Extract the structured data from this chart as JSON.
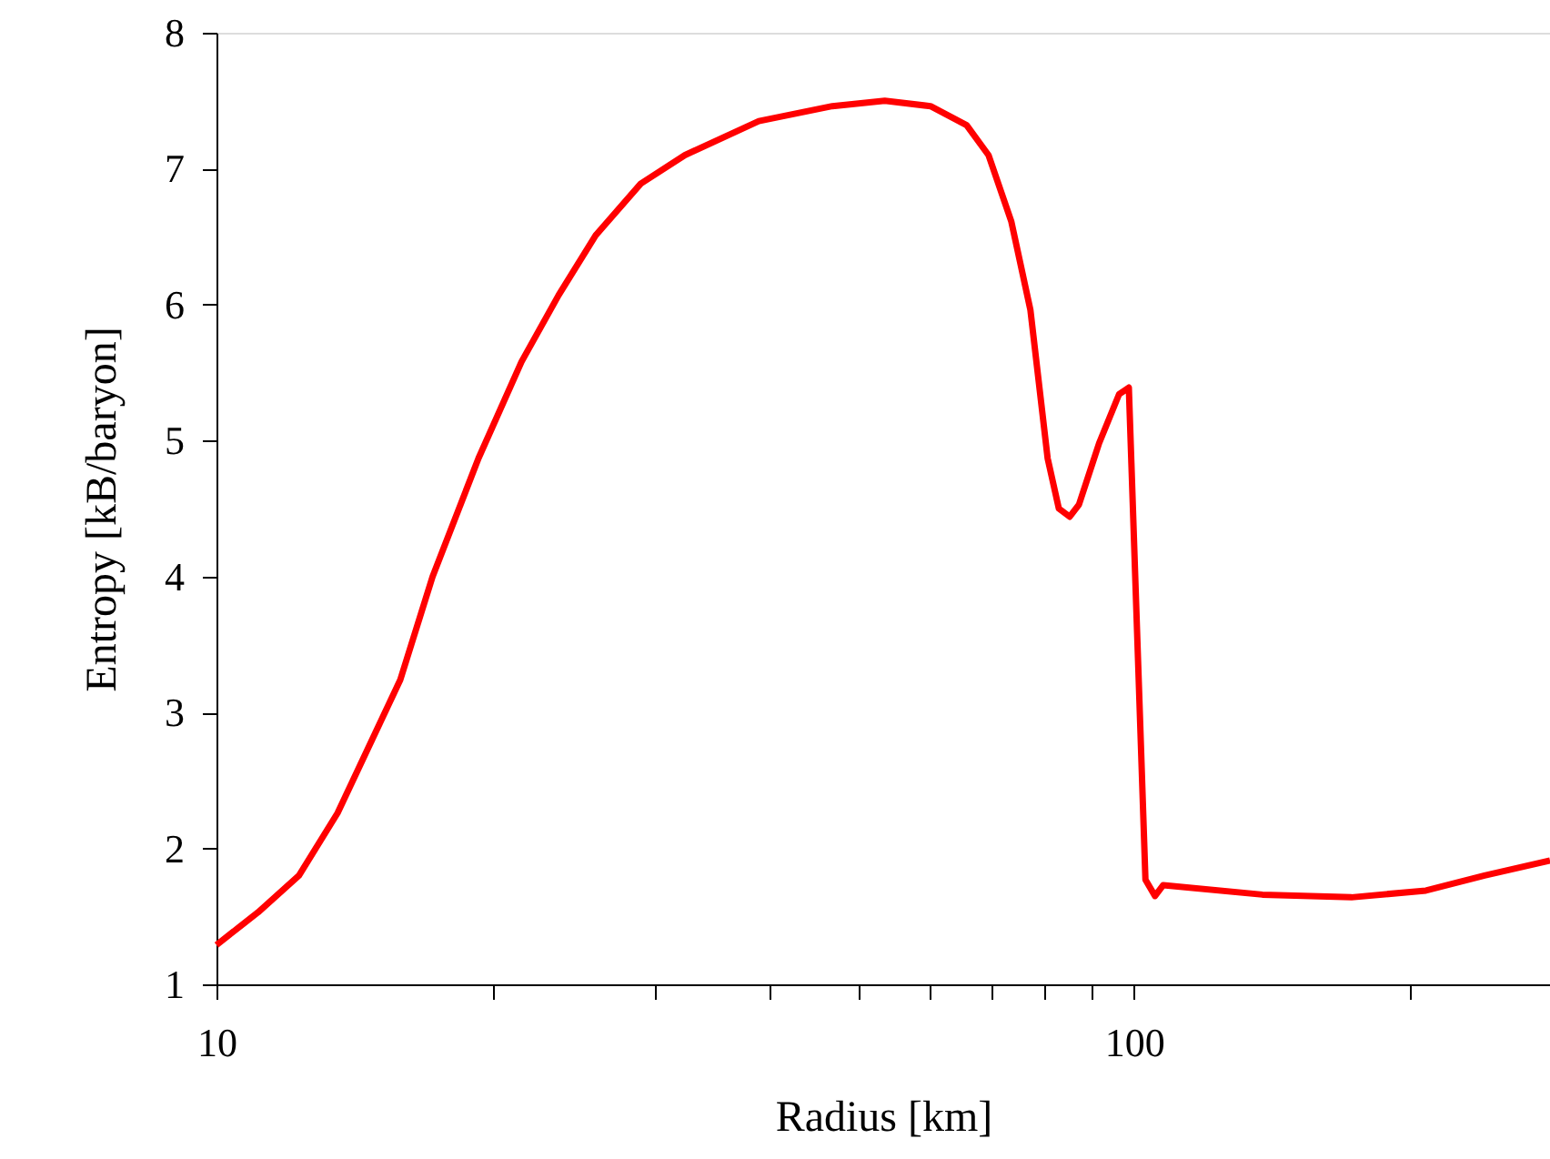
{
  "chart_data": {
    "type": "line",
    "xlabel": "Radius [km]",
    "ylabel": "Entropy [kB/baryon]",
    "log": "x",
    "xlim": [
      10,
      284
    ],
    "ylim": [
      1,
      8
    ],
    "xticks": [
      10,
      {
        "value": 20,
        "label": null
      },
      {
        "value": 30,
        "label": null
      },
      {
        "value": 40,
        "label": null
      },
      {
        "value": 50,
        "label": null
      },
      {
        "value": 60,
        "label": null
      },
      {
        "value": 70,
        "label": null
      },
      {
        "value": 80,
        "label": null
      },
      {
        "value": 90,
        "label": null
      },
      100,
      {
        "value": 200,
        "label": null
      }
    ],
    "yticks": [
      1,
      2,
      3,
      4,
      5,
      6,
      7,
      8
    ],
    "grid": false,
    "x": [
      10,
      11.1,
      12.3,
      13.55,
      15.86,
      17.2,
      19.3,
      21.5,
      23.6,
      25.9,
      29.0,
      32.4,
      39.0,
      46.9,
      53.5,
      60,
      65.7,
      69.4,
      73.5,
      77.1,
      80.5,
      82.8,
      85.1,
      87.1,
      91.6,
      96.3,
      98.7,
      102.9,
      105.4,
      107.6,
      138,
      172.6,
      208,
      241,
      284
    ],
    "series": [
      {
        "color": "#ff0000",
        "values": [
          1.29,
          1.53,
          1.8,
          2.26,
          3.24,
          4.0,
          4.87,
          5.58,
          6.07,
          6.51,
          6.89,
          7.1,
          7.35,
          7.46,
          7.5,
          7.46,
          7.32,
          7.1,
          6.61,
          5.96,
          4.87,
          4.5,
          4.44,
          4.53,
          4.98,
          5.34,
          5.39,
          1.77,
          1.65,
          1.73,
          1.66,
          1.64,
          1.69,
          1.8,
          1.91
        ]
      }
    ]
  }
}
